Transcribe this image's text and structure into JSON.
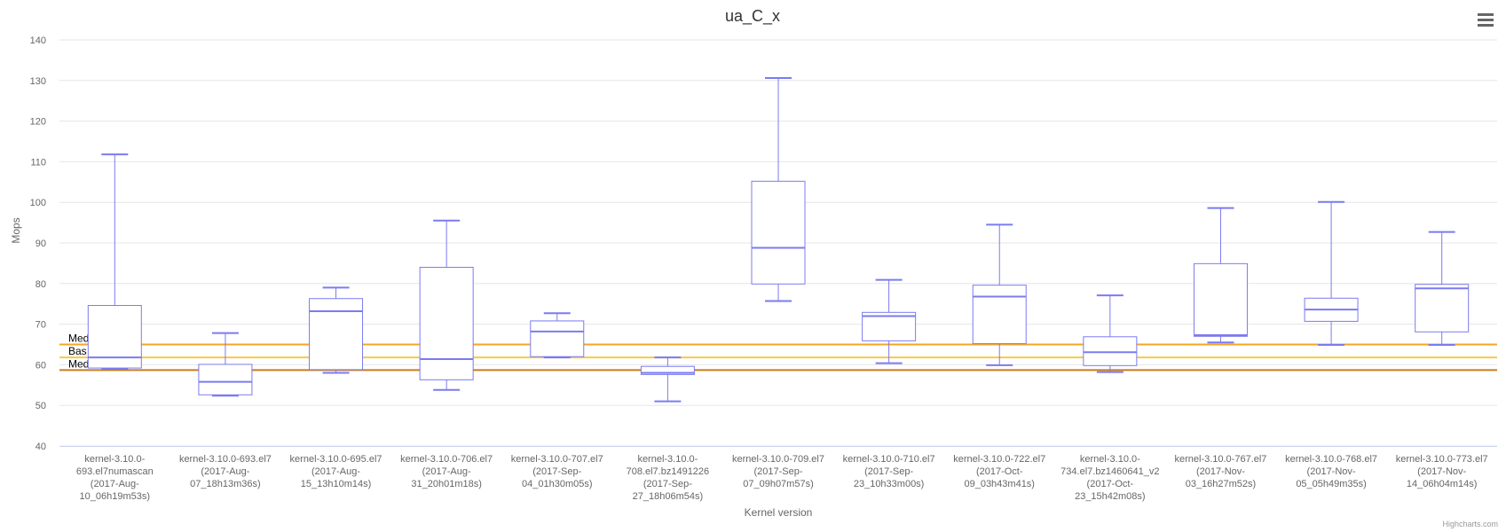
{
  "chart_data": {
    "type": "boxplot",
    "title": "ua_C_x",
    "xlabel": "Kernel version",
    "ylabel": "Mops",
    "ylim": [
      40,
      140
    ],
    "yticks": [
      40,
      50,
      60,
      70,
      80,
      90,
      100,
      110,
      120,
      130,
      140
    ],
    "grid": true,
    "colors": {
      "box": "#7b7bf0",
      "gold": "#f5a623",
      "yellow": "#f7c948",
      "dark": "#c77c1e",
      "grid": "#e6e6e6",
      "axis": "#ccd6eb"
    },
    "categories": [
      [
        "kernel-3.10.0-",
        "693.el7numascan",
        "(2017-Aug-",
        "10_06h19m53s)"
      ],
      [
        "kernel-3.10.0-693.el7",
        "(2017-Aug-",
        "07_18h13m36s)"
      ],
      [
        "kernel-3.10.0-695.el7",
        "(2017-Aug-",
        "15_13h10m14s)"
      ],
      [
        "kernel-3.10.0-706.el7",
        "(2017-Aug-",
        "31_20h01m18s)"
      ],
      [
        "kernel-3.10.0-707.el7",
        "(2017-Sep-",
        "04_01h30m05s)"
      ],
      [
        "kernel-3.10.0-",
        "708.el7.bz1491226",
        "(2017-Sep-",
        "27_18h06m54s)"
      ],
      [
        "kernel-3.10.0-709.el7",
        "(2017-Sep-",
        "07_09h07m57s)"
      ],
      [
        "kernel-3.10.0-710.el7",
        "(2017-Sep-",
        "23_10h33m00s)"
      ],
      [
        "kernel-3.10.0-722.el7",
        "(2017-Oct-",
        "09_03h43m41s)"
      ],
      [
        "kernel-3.10.0-",
        "734.el7.bz1460641_v2",
        "(2017-Oct-",
        "23_15h42m08s)"
      ],
      [
        "kernel-3.10.0-767.el7",
        "(2017-Nov-",
        "03_16h27m52s)"
      ],
      [
        "kernel-3.10.0-768.el7",
        "(2017-Nov-",
        "05_05h49m35s)"
      ],
      [
        "kernel-3.10.0-773.el7",
        "(2017-Nov-",
        "14_06h04m14s)"
      ]
    ],
    "boxes": [
      {
        "low": 59,
        "q1": 59.2,
        "median": 61.8,
        "q3": 74.6,
        "high": 111.8
      },
      {
        "low": 52.4,
        "q1": 52.6,
        "median": 55.8,
        "q3": 60.1,
        "high": 67.8
      },
      {
        "low": 58,
        "q1": 58.8,
        "median": 73.2,
        "q3": 76.3,
        "high": 79
      },
      {
        "low": 53.8,
        "q1": 56.3,
        "median": 61.4,
        "q3": 84,
        "high": 95.5
      },
      {
        "low": 61.8,
        "q1": 62,
        "median": 68.2,
        "q3": 70.8,
        "high": 72.7
      },
      {
        "low": 51,
        "q1": 57.6,
        "median": 58,
        "q3": 59.6,
        "high": 61.8
      },
      {
        "low": 75.7,
        "q1": 79.9,
        "median": 88.8,
        "q3": 105.2,
        "high": 130.6
      },
      {
        "low": 60.4,
        "q1": 65.9,
        "median": 72,
        "q3": 72.9,
        "high": 80.9
      },
      {
        "low": 59.9,
        "q1": 65.2,
        "median": 76.8,
        "q3": 79.6,
        "high": 94.5
      },
      {
        "low": 58.2,
        "q1": 59.8,
        "median": 63.1,
        "q3": 66.9,
        "high": 77.1
      },
      {
        "low": 65.5,
        "q1": 67,
        "median": 67.3,
        "q3": 84.9,
        "high": 98.6
      },
      {
        "low": 64.9,
        "q1": 70.7,
        "median": 73.6,
        "q3": 76.4,
        "high": 100.1
      },
      {
        "low": 64.9,
        "q1": 68.1,
        "median": 78.8,
        "q3": 79.8,
        "high": 92.7
      }
    ],
    "plot_lines": [
      {
        "label": "Med",
        "value": 65,
        "color": "#f5a623"
      },
      {
        "label": "Bas",
        "value": 61.8,
        "color": "#f7c948"
      },
      {
        "label": "Med",
        "value": 58.7,
        "color": "#c77c1e"
      }
    ]
  },
  "credit": "Highcharts.com",
  "menu_icon": "hamburger-menu-icon"
}
